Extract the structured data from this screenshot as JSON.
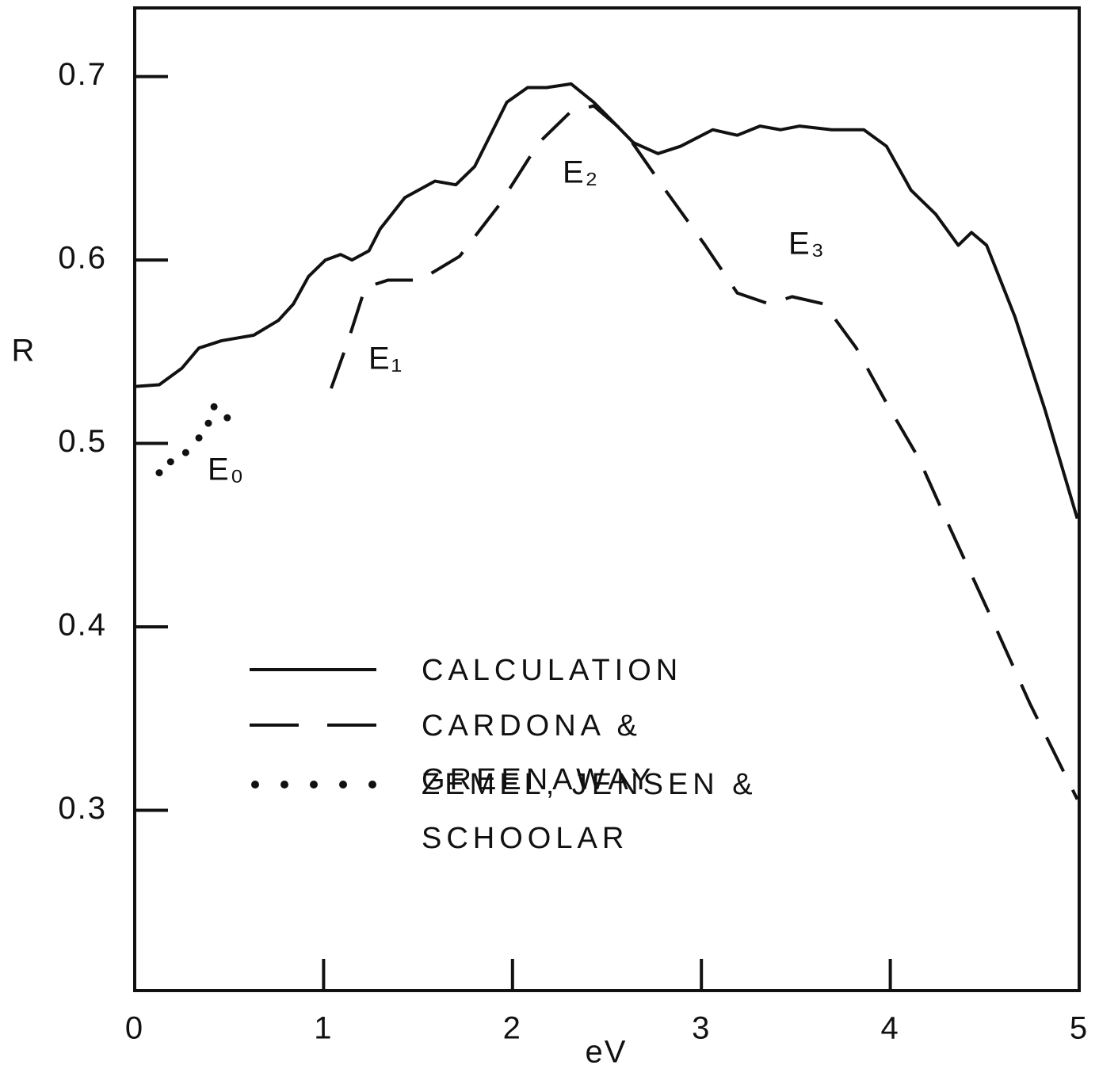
{
  "chart_data": {
    "type": "line",
    "xlabel": "eV",
    "ylabel": "R",
    "xlim": [
      0,
      5
    ],
    "ylim": [
      0.2,
      0.74
    ],
    "xticks": [
      0,
      1,
      2,
      3,
      4,
      5
    ],
    "yticks": [
      0.3,
      0.4,
      0.5,
      0.6,
      0.7
    ],
    "series": [
      {
        "name": "CALCULATION",
        "style": "solid",
        "color": "#111111",
        "x": [
          0,
          0.13,
          0.25,
          0.34,
          0.46,
          0.63,
          0.76,
          0.84,
          0.92,
          1.01,
          1.09,
          1.15,
          1.24,
          1.3,
          1.43,
          1.59,
          1.7,
          1.8,
          1.97,
          2.08,
          2.18,
          2.31,
          2.43,
          2.64,
          2.77,
          2.89,
          3.06,
          3.19,
          3.31,
          3.42,
          3.52,
          3.69,
          3.86,
          3.98,
          4.11,
          4.24,
          4.36,
          4.43,
          4.51,
          4.66,
          4.82,
          4.99
        ],
        "values": [
          0.531,
          0.532,
          0.541,
          0.552,
          0.556,
          0.559,
          0.567,
          0.576,
          0.591,
          0.6,
          0.603,
          0.6,
          0.605,
          0.617,
          0.634,
          0.643,
          0.641,
          0.651,
          0.686,
          0.694,
          0.694,
          0.696,
          0.686,
          0.664,
          0.658,
          0.662,
          0.671,
          0.668,
          0.673,
          0.671,
          0.673,
          0.671,
          0.671,
          0.662,
          0.638,
          0.625,
          0.608,
          0.615,
          0.608,
          0.569,
          0.518,
          0.459
        ]
      },
      {
        "name": "CARDONA & GREENAWAY",
        "style": "dashed",
        "color": "#111111",
        "x": [
          1.04,
          1.13,
          1.22,
          1.34,
          1.51,
          1.72,
          1.93,
          2.14,
          2.31,
          2.43,
          2.6,
          2.81,
          3.02,
          3.19,
          3.36,
          3.48,
          3.65,
          3.82,
          3.98,
          4.15,
          4.32,
          4.53,
          4.74,
          4.99
        ],
        "values": [
          0.53,
          0.556,
          0.585,
          0.589,
          0.589,
          0.602,
          0.63,
          0.664,
          0.681,
          0.684,
          0.669,
          0.638,
          0.608,
          0.582,
          0.576,
          0.58,
          0.576,
          0.552,
          0.522,
          0.492,
          0.453,
          0.406,
          0.358,
          0.306
        ]
      },
      {
        "name": "ZEMEL, JENSEN & SCHOOLAR",
        "style": "dotted",
        "color": "#111111",
        "x": [
          0.13,
          0.19,
          0.27,
          0.34,
          0.39,
          0.42,
          0.49
        ],
        "values": [
          0.484,
          0.49,
          0.495,
          0.503,
          0.511,
          0.52,
          0.514
        ]
      }
    ],
    "annotations": [
      "E₀",
      "E₁",
      "E₂",
      "E₃"
    ]
  }
}
